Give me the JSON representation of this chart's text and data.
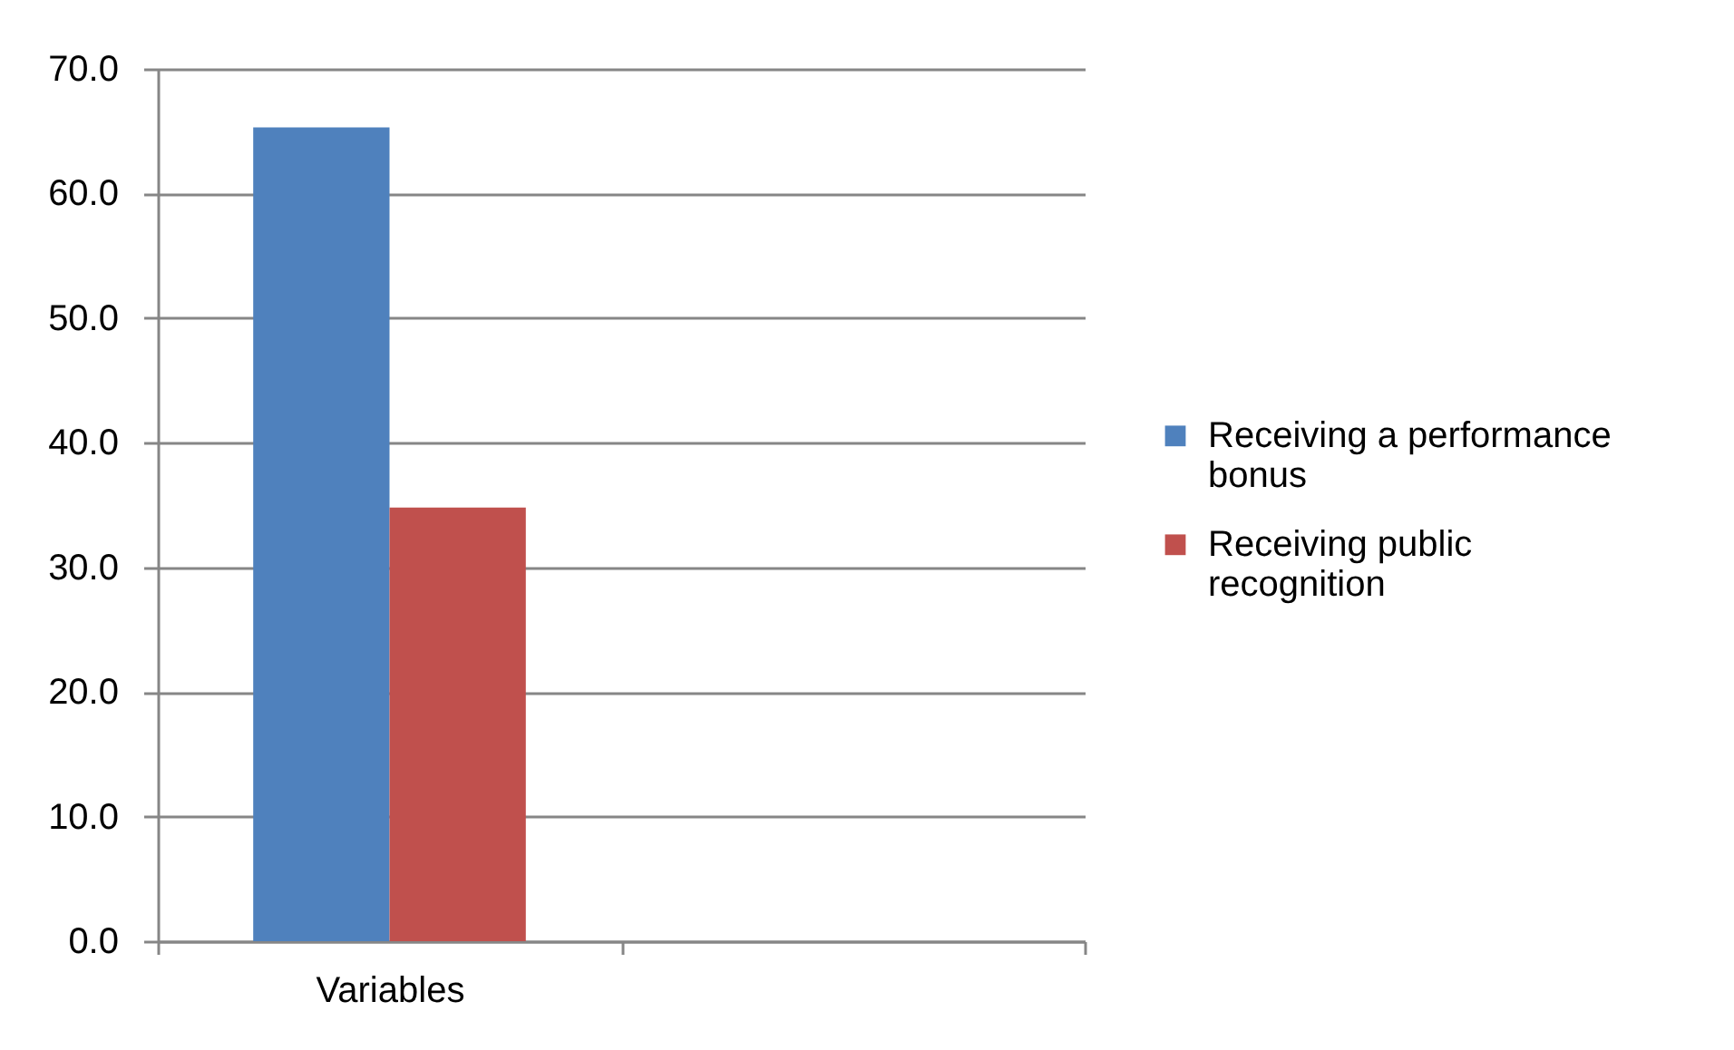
{
  "chart_data": {
    "type": "bar",
    "categories": [
      "Variables",
      null
    ],
    "series": [
      {
        "name": "Receiving a performance bonus",
        "color": "#4f81bd",
        "values": [
          65.3,
          null
        ]
      },
      {
        "name": "Receiving public recognition",
        "color": "#c0504d",
        "values": [
          34.8,
          null
        ]
      }
    ],
    "ylim": [
      0,
      70
    ],
    "yticks": [
      {
        "value": 0,
        "label": "0.0"
      },
      {
        "value": 10,
        "label": "10.0"
      },
      {
        "value": 20,
        "label": "20.0"
      },
      {
        "value": 30,
        "label": "30.0"
      },
      {
        "value": 40,
        "label": "40.0"
      },
      {
        "value": 50,
        "label": "50.0"
      },
      {
        "value": 60,
        "label": "60.0"
      },
      {
        "value": 70,
        "label": "70.0"
      }
    ],
    "grid": "y",
    "legend": "right"
  }
}
